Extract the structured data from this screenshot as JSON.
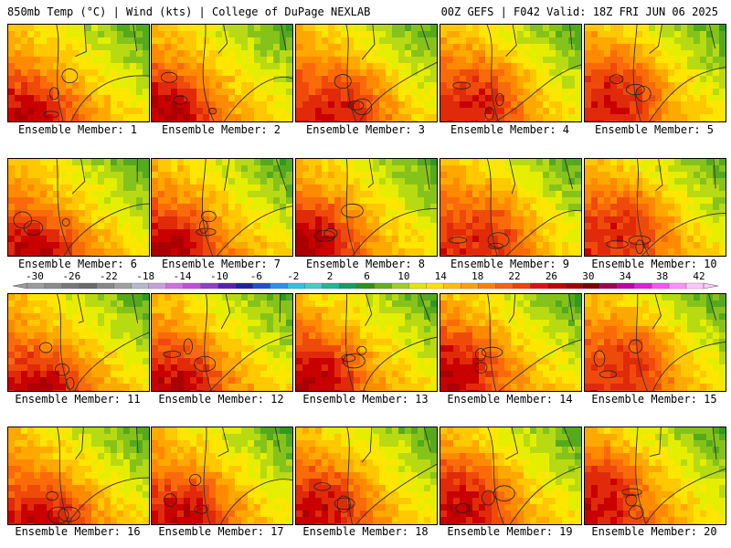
{
  "header": {
    "left": "850mb Temp (°C) | Wind (kts) | College of DuPage NEXLAB",
    "right": "00Z GEFS | F042 Valid: 18Z FRI JUN 06 2025"
  },
  "panels": [
    {
      "label": "Ensemble Member: 1"
    },
    {
      "label": "Ensemble Member: 2"
    },
    {
      "label": "Ensemble Member: 3"
    },
    {
      "label": "Ensemble Member: 4"
    },
    {
      "label": "Ensemble Member: 5"
    },
    {
      "label": "Ensemble Member: 6"
    },
    {
      "label": "Ensemble Member: 7"
    },
    {
      "label": "Ensemble Member: 8"
    },
    {
      "label": "Ensemble Member: 9"
    },
    {
      "label": "Ensemble Member: 10"
    },
    {
      "label": "Ensemble Member: 11"
    },
    {
      "label": "Ensemble Member: 12"
    },
    {
      "label": "Ensemble Member: 13"
    },
    {
      "label": "Ensemble Member: 14"
    },
    {
      "label": "Ensemble Member: 15"
    },
    {
      "label": "Ensemble Member: 16"
    },
    {
      "label": "Ensemble Member: 17"
    },
    {
      "label": "Ensemble Member: 18"
    },
    {
      "label": "Ensemble Member: 19"
    },
    {
      "label": "Ensemble Member: 20"
    }
  ],
  "colorbar": {
    "tick_labels": [
      "-30",
      "-26",
      "-22",
      "-18",
      "-14",
      "-10",
      "-6",
      "-2",
      "2",
      "6",
      "10",
      "14",
      "18",
      "22",
      "26",
      "30",
      "34",
      "38",
      "42"
    ],
    "colors": [
      "#9b9b9b",
      "#8a8a8a",
      "#787878",
      "#6a6a6a",
      "#888888",
      "#a0a0a0",
      "#b8b8c8",
      "#c8a0d8",
      "#d070e0",
      "#c050d8",
      "#9040c0",
      "#5a20b0",
      "#2020a0",
      "#2050d0",
      "#3090e0",
      "#30c0e0",
      "#40d0c0",
      "#20b890",
      "#10a060",
      "#309020",
      "#60b020",
      "#a0d020",
      "#e0e800",
      "#ffe000",
      "#ffc000",
      "#ffa000",
      "#ff8000",
      "#f86010",
      "#f04010",
      "#e01010",
      "#c00000",
      "#a00000",
      "#800000",
      "#a00050",
      "#c000a0",
      "#e020d0",
      "#ff50f0",
      "#ff90ff",
      "#ffc8ff"
    ]
  }
}
